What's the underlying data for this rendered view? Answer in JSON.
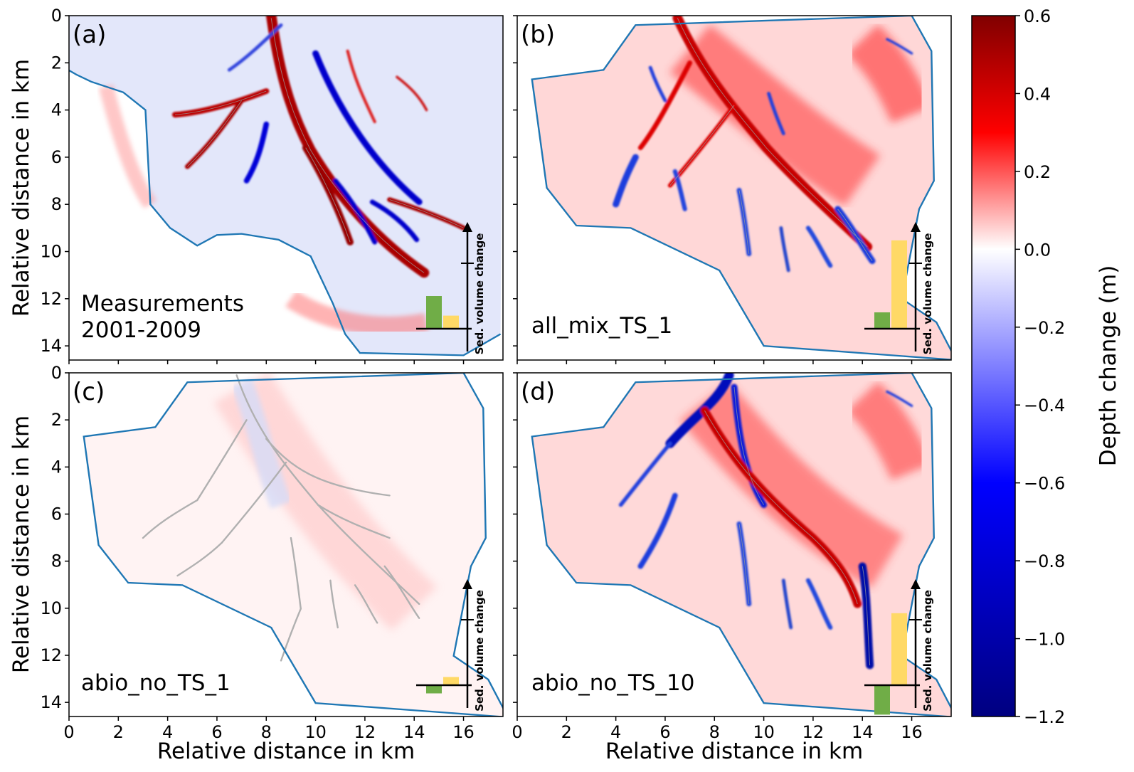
{
  "chart_data": {
    "type": "heatmap",
    "colorbar": {
      "title": "Depth change (m)",
      "vmin": -1.2,
      "vmax": 0.6,
      "ticks": [
        "0.6",
        "0.4",
        "0.2",
        "0.0",
        "−0.2",
        "−0.4",
        "−0.6",
        "−0.8",
        "−1.0",
        "−1.2"
      ],
      "colormap": "seismic",
      "colors": {
        "max": "#800000",
        "pos": "#ff0000",
        "zero": "#ffffff",
        "neg": "#0000ff",
        "min": "#000080"
      }
    },
    "xlabel": "Relative distance in km",
    "ylabel": "Relative distance in km",
    "x_range": [
      0,
      17.6
    ],
    "y_range": [
      14.6,
      0
    ],
    "x_ticks": [
      "0",
      "2",
      "4",
      "6",
      "8",
      "10",
      "12",
      "14",
      "16"
    ],
    "y_ticks": [
      "0",
      "2",
      "4",
      "6",
      "8",
      "10",
      "12",
      "14"
    ],
    "inset_axis_label": "Sed. volume change",
    "outline_color": "#1f77b4",
    "bar_colors": {
      "green": "#70ad47",
      "yellow": "#ffd966"
    },
    "panels": [
      {
        "letter": "(a)",
        "label_lines": [
          "Measurements",
          "2001-2009"
        ],
        "label_color": "#000000",
        "sed_volume_change": {
          "green": 1.0,
          "yellow": 0.4
        }
      },
      {
        "letter": "(b)",
        "label_lines": [
          "all_mix_TS_1"
        ],
        "label_color": "#9467bd",
        "sed_volume_change": {
          "green": 0.5,
          "yellow": 2.7
        }
      },
      {
        "letter": "(c)",
        "label_lines": [
          "abio_no_TS_1"
        ],
        "label_color": "#ff7f0e",
        "sed_volume_change": {
          "green": -0.25,
          "yellow": 0.25
        }
      },
      {
        "letter": "(d)",
        "label_lines": [
          "abio_no_TS_10"
        ],
        "label_color": "#ff7f0e",
        "sed_volume_change": {
          "green": -0.9,
          "yellow": 2.2
        }
      }
    ]
  }
}
